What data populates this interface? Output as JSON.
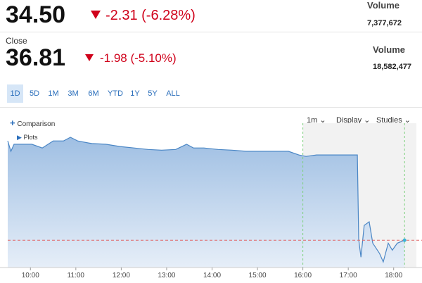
{
  "quote": {
    "last": {
      "price": "34.50",
      "change": "-2.31 (-6.28%)",
      "volume_label": "Volume",
      "volume": "7,377,672"
    },
    "close": {
      "label": "Close",
      "price": "36.81",
      "change": "-1.98 (-5.10%)",
      "volume_label": "Volume",
      "volume": "18,582,477"
    }
  },
  "ranges": [
    "1D",
    "5D",
    "1M",
    "3M",
    "6M",
    "YTD",
    "1Y",
    "5Y",
    "ALL"
  ],
  "toolbar": {
    "comparison": "Comparison",
    "interval": "1m",
    "display": "Display",
    "studies": "Studies",
    "plots": "Plots"
  },
  "chart_data": {
    "type": "area",
    "x": [
      9.5,
      9.57,
      9.64,
      9.8,
      10.03,
      10.26,
      10.5,
      10.73,
      10.88,
      11.04,
      11.35,
      11.66,
      11.97,
      12.28,
      12.59,
      12.89,
      13.2,
      13.44,
      13.59,
      13.82,
      14.13,
      14.44,
      14.75,
      15.06,
      15.37,
      15.68,
      15.91,
      16.07,
      16.3,
      16.76,
      17.2,
      17.23,
      17.28,
      17.35,
      17.46,
      17.54,
      17.69,
      17.77,
      17.88,
      17.97,
      18.08,
      18.24
    ],
    "series": [
      {
        "color": "#4a86c5",
        "values": [
          37.19,
          36.91,
          37.1,
          37.1,
          37.1,
          37.0,
          37.19,
          37.19,
          37.29,
          37.19,
          37.12,
          37.1,
          37.04,
          37.0,
          36.96,
          36.94,
          36.96,
          37.1,
          37.0,
          37.0,
          36.96,
          36.94,
          36.91,
          36.91,
          36.91,
          36.91,
          36.81,
          36.77,
          36.81,
          36.81,
          36.81,
          34.52,
          34.04,
          34.9,
          35.0,
          34.42,
          34.14,
          33.91,
          34.42,
          34.23,
          34.42,
          34.5
        ]
      }
    ],
    "xlim": [
      9.5,
      18.5
    ],
    "ylim": [
      33.76,
      37.48
    ],
    "xticks": [
      {
        "value": 10,
        "label": "10:00"
      },
      {
        "value": 11,
        "label": "11:00"
      },
      {
        "value": 12,
        "label": "12:00"
      },
      {
        "value": 13,
        "label": "13:00"
      },
      {
        "value": 14,
        "label": "14:00"
      },
      {
        "value": 15,
        "label": "15:00"
      },
      {
        "value": 16,
        "label": "16:00"
      },
      {
        "value": 17,
        "label": "17:00"
      },
      {
        "value": 18,
        "label": "18:00"
      }
    ],
    "session_lines": [
      16,
      18.24
    ],
    "last_line_color": "#e06666"
  }
}
